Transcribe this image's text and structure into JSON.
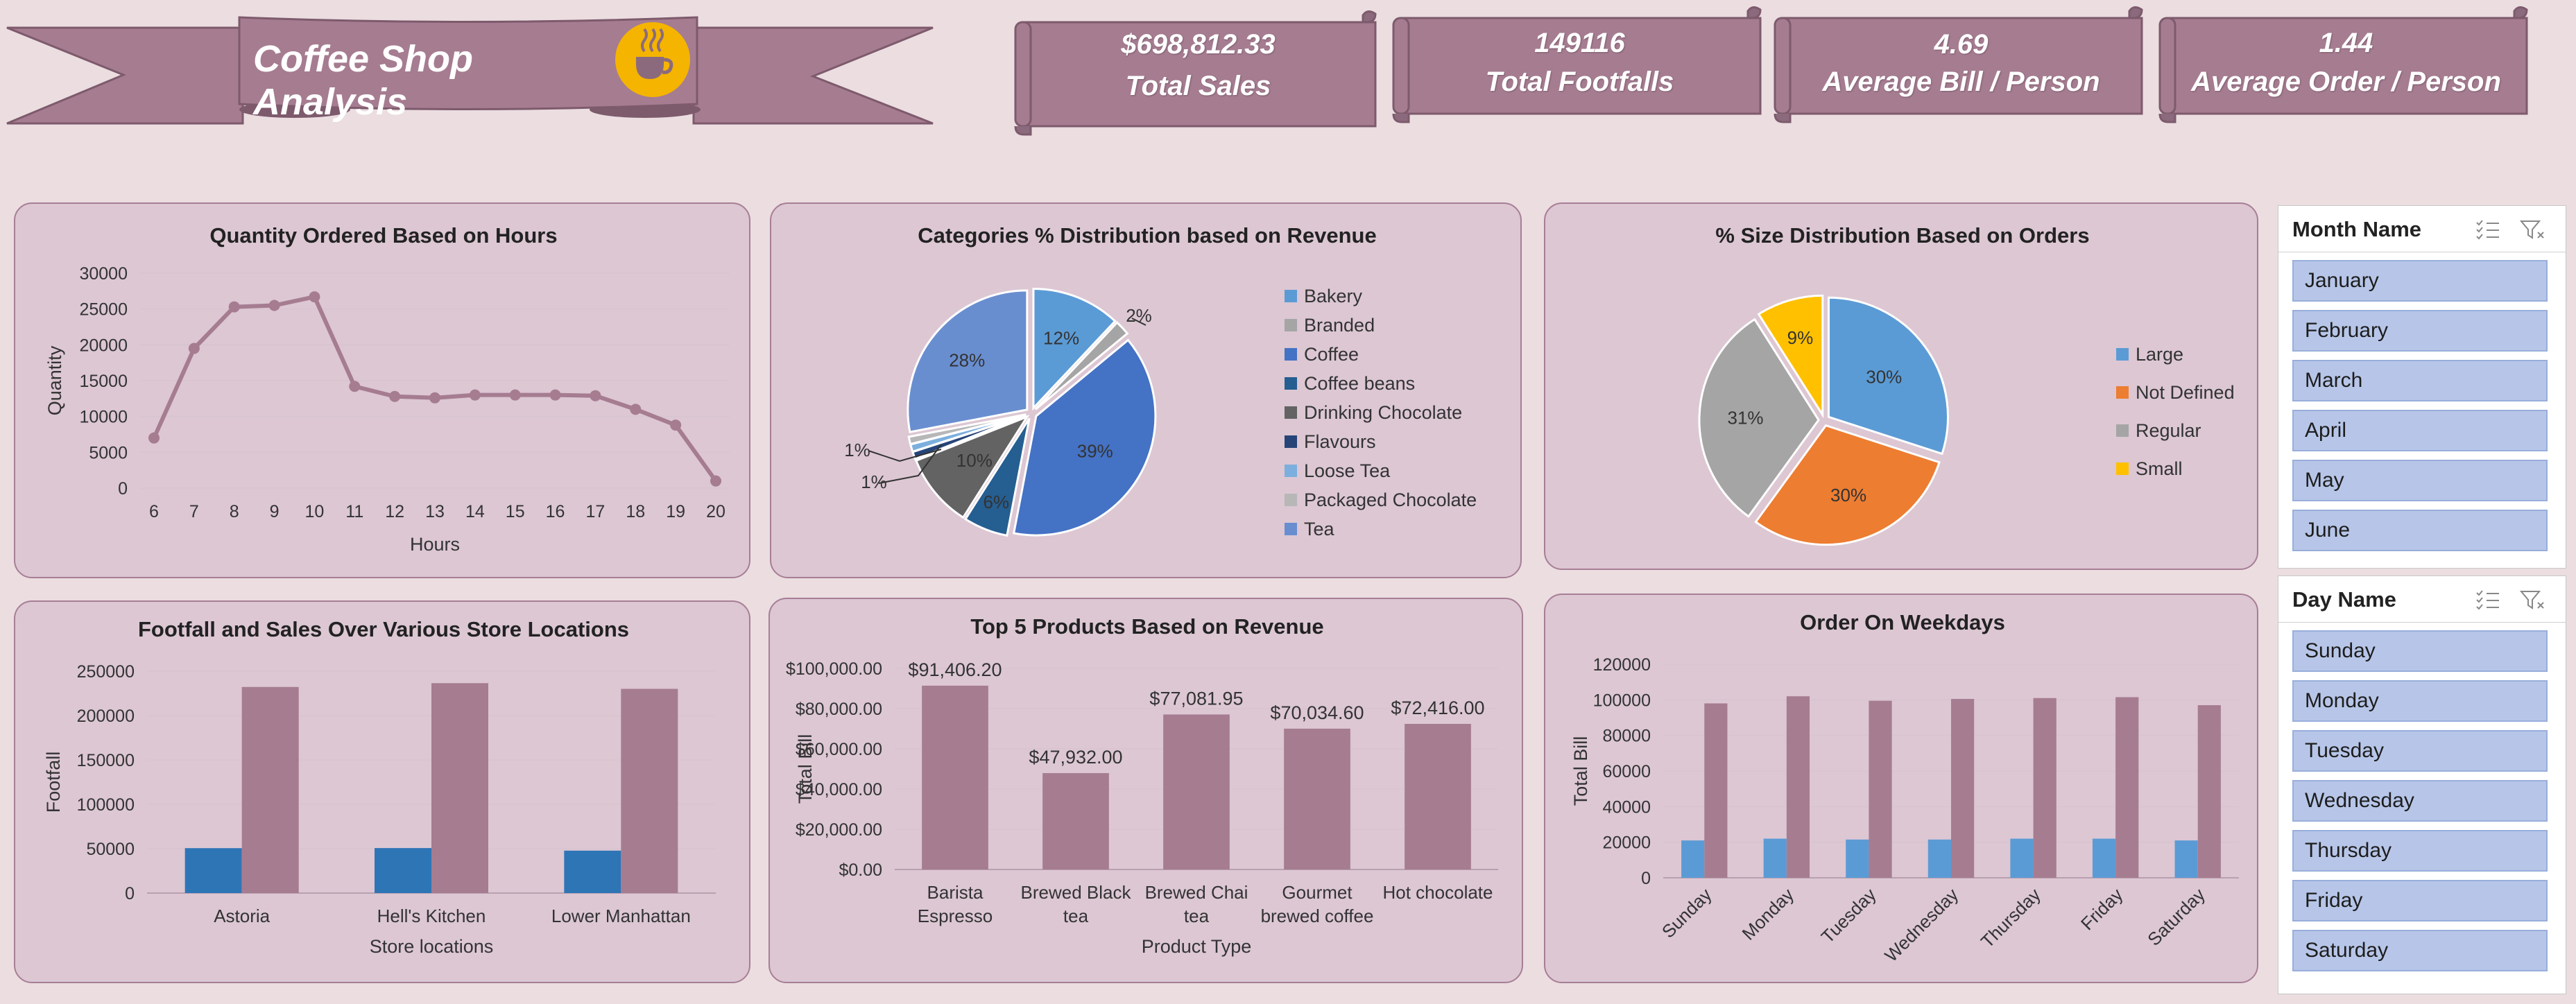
{
  "dashboard": {
    "title": "Coffee Shop Analysis"
  },
  "kpis": [
    {
      "value": "$698,812.33",
      "label": "Total Sales"
    },
    {
      "value": "149116",
      "label": "Total Footfalls"
    },
    {
      "value": "4.69",
      "label": "Average Bill / Person"
    },
    {
      "value": "1.44",
      "label": "Average Order / Person"
    }
  ],
  "colors": {
    "background": "#ebdde0",
    "panel": "#dcc7d3",
    "accent": "#a67c91",
    "banner": "#a67c91",
    "blue": "#2e75b6"
  },
  "icons": {
    "banner_logo": "coffee-cup-icon",
    "slicer_multiselect": "multi-select-icon",
    "slicer_clear": "clear-filter-icon"
  },
  "slicers": {
    "month": {
      "title": "Month Name",
      "items": [
        "January",
        "February",
        "March",
        "April",
        "May",
        "June"
      ]
    },
    "day": {
      "title": "Day Name",
      "items": [
        "Sunday",
        "Monday",
        "Tuesday",
        "Wednesday",
        "Thursday",
        "Friday",
        "Saturday"
      ]
    }
  },
  "chart_data": [
    {
      "type": "line",
      "title": "Quantity Ordered Based on Hours",
      "xlabel": "Hours",
      "ylabel": "Quantity",
      "x": [
        6,
        7,
        8,
        9,
        10,
        11,
        12,
        13,
        14,
        15,
        16,
        17,
        18,
        19,
        20
      ],
      "values": [
        7000,
        19500,
        25300,
        25500,
        26700,
        14200,
        12800,
        12600,
        13000,
        13000,
        13000,
        12900,
        11000,
        8800,
        1000
      ],
      "ylim": [
        0,
        30000
      ],
      "yticks": [
        "0",
        "5000",
        "10000",
        "15000",
        "20000",
        "25000",
        "30000"
      ],
      "grid": true,
      "color": "#a67c91"
    },
    {
      "type": "pie",
      "title": "Categories % Distribution based on Revenue",
      "legend_position": "right",
      "slices": [
        {
          "label": "Bakery",
          "value": 12,
          "display": "12%",
          "color": "#5b9bd5"
        },
        {
          "label": "Branded",
          "value": 2,
          "display": "2%",
          "color": "#a5a5a5"
        },
        {
          "label": "Coffee",
          "value": 39,
          "display": "39%",
          "color": "#4472c4"
        },
        {
          "label": "Coffee beans",
          "value": 6,
          "display": "6%",
          "color": "#255e91"
        },
        {
          "label": "Drinking Chocolate",
          "value": 10,
          "display": "10%",
          "color": "#636363"
        },
        {
          "label": "Flavours",
          "value": 1,
          "display": "1%",
          "color": "#264478"
        },
        {
          "label": "Loose Tea",
          "value": 1,
          "display": "1%",
          "color": "#7cafdd"
        },
        {
          "label": "Packaged Chocolate",
          "value": 1,
          "display": "1%",
          "color": "#b7b7b7"
        },
        {
          "label": "Tea",
          "value": 28,
          "display": "28%",
          "color": "#698ed0"
        }
      ]
    },
    {
      "type": "pie",
      "title": "% Size Distribution Based on Orders",
      "legend_position": "right",
      "slices": [
        {
          "label": "Large",
          "value": 30,
          "display": "30%",
          "color": "#5b9bd5"
        },
        {
          "label": "Not Defined",
          "value": 30,
          "display": "30%",
          "color": "#ed7d31"
        },
        {
          "label": "Regular",
          "value": 31,
          "display": "31%",
          "color": "#a5a5a5"
        },
        {
          "label": "Small",
          "value": 9,
          "display": "9%",
          "color": "#ffc000"
        }
      ]
    },
    {
      "type": "bar",
      "title": "Footfall and Sales Over Various Store Locations",
      "xlabel": "Store locations",
      "ylabel": "Footfall",
      "categories": [
        "Astoria",
        "Hell's Kitchen",
        "Lower Manhattan"
      ],
      "series": [
        {
          "values": [
            50600,
            50700,
            47800
          ],
          "color": "#2e75b6"
        },
        {
          "values": [
            232200,
            236500,
            230100
          ],
          "color": "#a67c91"
        }
      ],
      "ylim": [
        0,
        250000
      ],
      "yticks": [
        "0",
        "50000",
        "100000",
        "150000",
        "200000",
        "250000"
      ]
    },
    {
      "type": "bar",
      "title": "Top 5 Products Based on Revenue",
      "xlabel": "Product Type",
      "ylabel": "Total Bill",
      "categories": [
        [
          "Barista",
          "Espresso"
        ],
        [
          "Brewed Black",
          "tea"
        ],
        [
          "Brewed Chai",
          "tea"
        ],
        [
          "Gourmet",
          "brewed coffee"
        ],
        [
          "Hot chocolate"
        ]
      ],
      "values": [
        91406.2,
        47932.0,
        77081.95,
        70034.6,
        72416.0
      ],
      "data_labels": [
        "$91,406.20",
        "$47,932.00",
        "$77,081.95",
        "$70,034.60",
        "$72,416.00"
      ],
      "ylim": [
        0,
        100000
      ],
      "yticks": [
        "$0.00",
        "$20,000.00",
        "$40,000.00",
        "$60,000.00",
        "$80,000.00",
        "$100,000.00"
      ],
      "color": "#a67c91"
    },
    {
      "type": "bar",
      "title": "Order On Weekdays",
      "ylabel": "Total Bill",
      "categories": [
        "Sunday",
        "Monday",
        "Tuesday",
        "Wednesday",
        "Thursday",
        "Friday",
        "Saturday"
      ],
      "series": [
        {
          "values": [
            21000,
            22000,
            21500,
            21500,
            22000,
            22000,
            21000
          ],
          "color": "#5b9bd5"
        },
        {
          "values": [
            98000,
            102000,
            99500,
            100500,
            101000,
            101500,
            97000
          ],
          "color": "#a67c91"
        }
      ],
      "ylim": [
        0,
        120000
      ],
      "yticks": [
        "0",
        "20000",
        "40000",
        "60000",
        "80000",
        "100000",
        "120000"
      ]
    }
  ]
}
